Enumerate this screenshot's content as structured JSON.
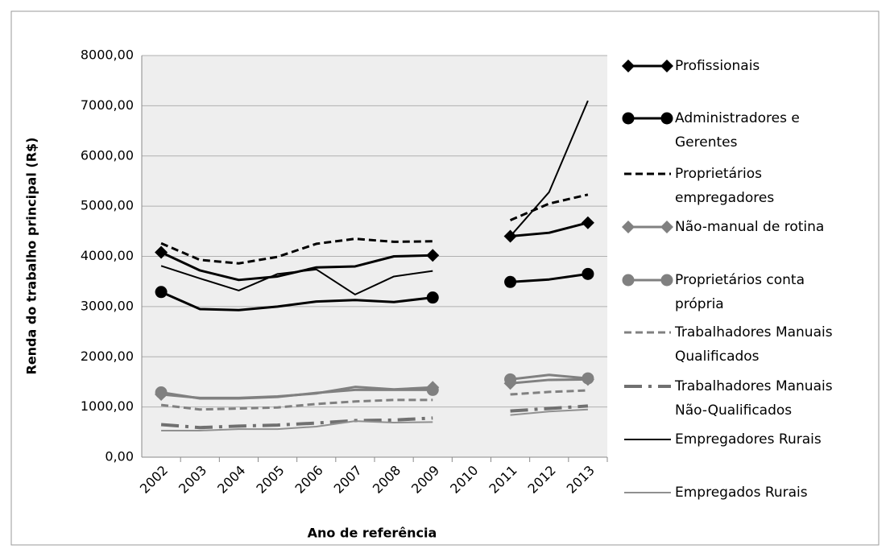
{
  "chart_data": {
    "type": "line",
    "y_label": "Renda do trabalho principal (R$)",
    "x_label": "Ano de referência",
    "categories": [
      "2002",
      "2003",
      "2004",
      "2005",
      "2006",
      "2007",
      "2008",
      "2009",
      "2010",
      "2011",
      "2012",
      "2013"
    ],
    "ylim": [
      0,
      8000
    ],
    "yticks": [
      {
        "value": 0,
        "label": "0,00"
      },
      {
        "value": 1000,
        "label": "1000,00"
      },
      {
        "value": 2000,
        "label": "2000,00"
      },
      {
        "value": 3000,
        "label": "3000,00"
      },
      {
        "value": 4000,
        "label": "4000,00"
      },
      {
        "value": 5000,
        "label": "5000,00"
      },
      {
        "value": 6000,
        "label": "6000,00"
      },
      {
        "value": 7000,
        "label": "7000,00"
      },
      {
        "value": 8000,
        "label": "8000,00"
      }
    ],
    "grid": true,
    "legend": "right",
    "series": [
      {
        "name": "Profissionais",
        "color": "#000000",
        "width": 3,
        "dash": "solid",
        "marker": "diamond",
        "values": [
          4080,
          3720,
          3530,
          3600,
          3780,
          3800,
          4000,
          4020,
          null,
          4400,
          4470,
          4670
        ]
      },
      {
        "name": "Administradores e Gerentes",
        "color": "#000000",
        "width": 3,
        "dash": "solid",
        "marker": "circle",
        "values": [
          3290,
          2950,
          2930,
          3000,
          3100,
          3130,
          3090,
          3180,
          null,
          3490,
          3540,
          3650
        ]
      },
      {
        "name": "Proprietários empregadores",
        "color": "#000000",
        "width": 3,
        "dash": "dash",
        "marker": "none",
        "values": [
          4260,
          3930,
          3860,
          3990,
          4250,
          4350,
          4290,
          4300,
          null,
          4720,
          5050,
          5230
        ]
      },
      {
        "name": "Não-manual de rotina",
        "color": "#808080",
        "width": 3,
        "dash": "solid",
        "marker": "diamond",
        "values": [
          1250,
          1180,
          1180,
          1210,
          1270,
          1400,
          1350,
          1390,
          null,
          1470,
          1540,
          1550
        ]
      },
      {
        "name": "Proprietários conta própria",
        "color": "#808080",
        "width": 3,
        "dash": "solid",
        "marker": "circle",
        "values": [
          1290,
          1170,
          1170,
          1200,
          1280,
          1340,
          1340,
          1340,
          null,
          1550,
          1640,
          1570
        ]
      },
      {
        "name": "Trabalhadores Manuais Qualificados",
        "color": "#808080",
        "width": 3,
        "dash": "dash",
        "marker": "none",
        "values": [
          1040,
          950,
          970,
          990,
          1060,
          1110,
          1140,
          1140,
          null,
          1250,
          1300,
          1330
        ]
      },
      {
        "name": "Trabalhadores Manuais Não-Qualificados",
        "color": "#707070",
        "width": 4,
        "dash": "dashdot",
        "marker": "none",
        "values": [
          650,
          590,
          620,
          640,
          680,
          730,
          740,
          780,
          null,
          920,
          970,
          1020
        ]
      },
      {
        "name": "Empregadores Rurais",
        "color": "#000000",
        "width": 2,
        "dash": "solid",
        "marker": "none",
        "values": [
          3810,
          3560,
          3320,
          3650,
          3740,
          3240,
          3600,
          3710,
          null,
          4400,
          5280,
          7100
        ]
      },
      {
        "name": "Empregados Rurais",
        "color": "#909090",
        "width": 2,
        "dash": "solid",
        "marker": "none",
        "values": [
          530,
          530,
          560,
          560,
          610,
          720,
          690,
          700,
          null,
          840,
          910,
          950
        ]
      }
    ]
  }
}
